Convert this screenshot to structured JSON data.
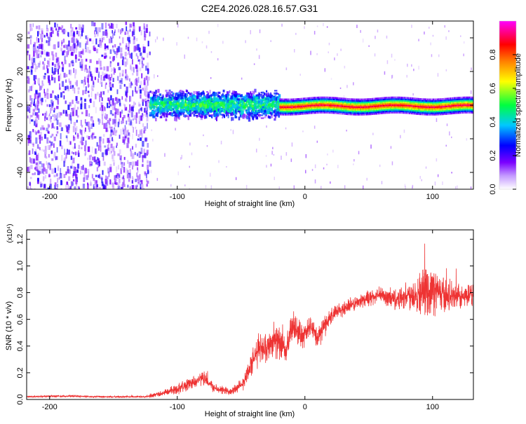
{
  "title": "C2E4.2026.028.16.57.G31",
  "chart_data": [
    {
      "type": "heatmap",
      "name": "spectrogram",
      "xlabel": "Height of straight line (km)",
      "ylabel": "Frequency (Hz)",
      "xlim": [
        -218,
        132
      ],
      "ylim": [
        -50,
        50
      ],
      "xticks": [
        -200,
        -100,
        0,
        100
      ],
      "yticks": [
        -40,
        -20,
        0,
        20,
        40
      ],
      "colorbar": {
        "label": "Normalized spectral amplitude",
        "range": [
          0.0,
          1.0
        ],
        "ticks": [
          0.0,
          0.2,
          0.4,
          0.6,
          0.8
        ],
        "colormap": [
          "#ffffff",
          "#7a00ff",
          "#0000ff",
          "#00ffff",
          "#00ff00",
          "#ffff00",
          "#ff8000",
          "#ff0000",
          "#ff00ff"
        ]
      },
      "regions": [
        {
          "x": [
            -218,
            -122
          ],
          "freq_band": [
            -50,
            50
          ],
          "amplitude": 0.15,
          "description_note": "broadband noise"
        },
        {
          "x": [
            -122,
            -20
          ],
          "freq_band": [
            -8,
            10
          ],
          "amplitude": 0.35
        },
        {
          "x": [
            -20,
            132
          ],
          "freq_band": [
            -3,
            4
          ],
          "amplitude": 0.9
        }
      ]
    },
    {
      "type": "line",
      "name": "snr",
      "xlabel": "Height of straight line (km)",
      "ylabel": "SNR (10 * v/v)",
      "scale_label": "(x10⁴)",
      "xlim": [
        -218,
        132
      ],
      "ylim": [
        0.0,
        1.27
      ],
      "xticks": [
        -200,
        -100,
        0,
        100
      ],
      "yticks": [
        0.0,
        0.2,
        0.4,
        0.6,
        0.8,
        1.0,
        1.2
      ],
      "color": "#ee3333",
      "series": [
        {
          "name": "SNR",
          "x": [
            -218,
            -200,
            -180,
            -160,
            -140,
            -125,
            -120,
            -110,
            -100,
            -90,
            -80,
            -75,
            -70,
            -60,
            -50,
            -45,
            -40,
            -35,
            -30,
            -25,
            -20,
            -15,
            -10,
            -5,
            0,
            5,
            10,
            15,
            20,
            30,
            40,
            50,
            60,
            70,
            80,
            90,
            100,
            110,
            120,
            132
          ],
          "values": [
            0.02,
            0.025,
            0.025,
            0.02,
            0.02,
            0.02,
            0.03,
            0.05,
            0.08,
            0.12,
            0.16,
            0.12,
            0.08,
            0.06,
            0.1,
            0.2,
            0.3,
            0.4,
            0.38,
            0.45,
            0.42,
            0.35,
            0.55,
            0.5,
            0.48,
            0.55,
            0.45,
            0.55,
            0.62,
            0.68,
            0.72,
            0.76,
            0.78,
            0.75,
            0.78,
            0.8,
            0.82,
            0.78,
            0.76,
            0.78
          ],
          "spread": [
            0.008,
            0.01,
            0.01,
            0.008,
            0.008,
            0.008,
            0.02,
            0.03,
            0.05,
            0.06,
            0.06,
            0.05,
            0.04,
            0.04,
            0.06,
            0.1,
            0.12,
            0.15,
            0.12,
            0.14,
            0.15,
            0.12,
            0.15,
            0.12,
            0.12,
            0.1,
            0.1,
            0.1,
            0.08,
            0.07,
            0.07,
            0.07,
            0.08,
            0.1,
            0.12,
            0.2,
            0.22,
            0.16,
            0.12,
            0.1
          ]
        }
      ]
    }
  ]
}
